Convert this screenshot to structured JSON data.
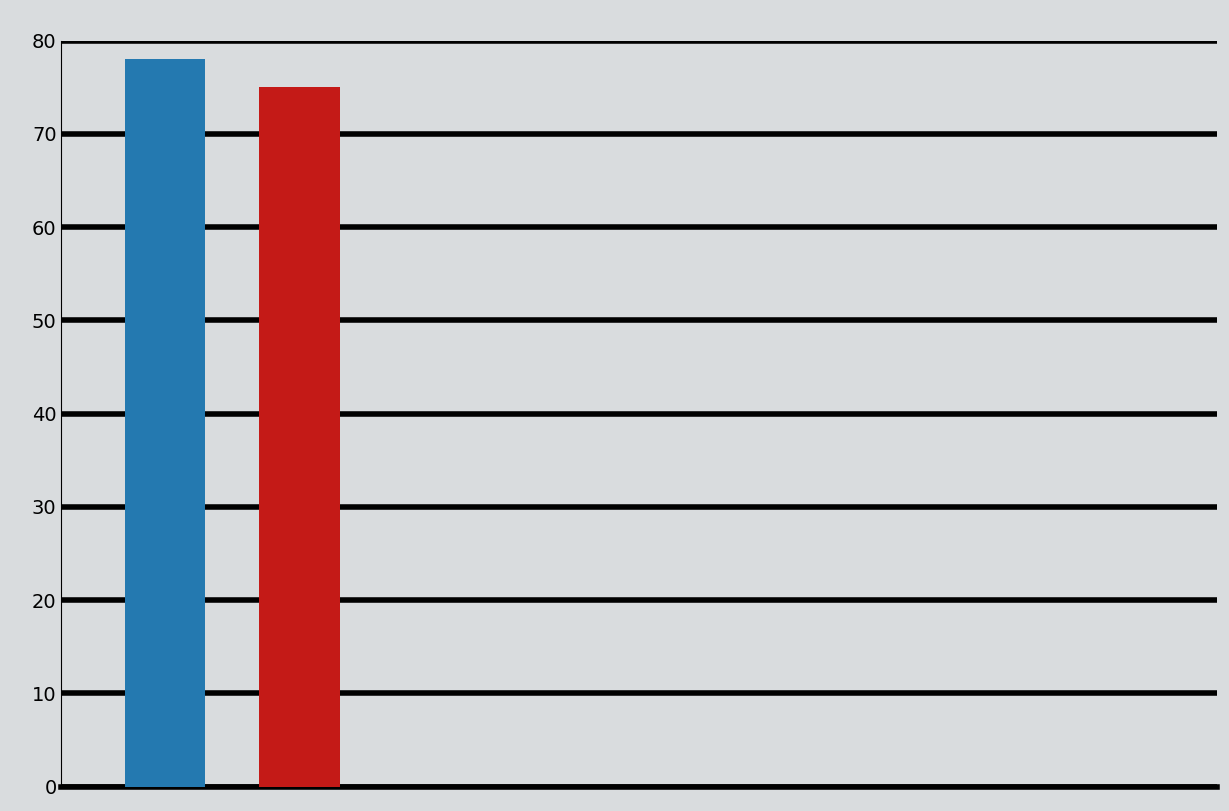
{
  "chart_data": {
    "type": "bar",
    "categories": [
      null,
      null
    ],
    "values": [
      78,
      75
    ],
    "colors": [
      "#2479b0",
      "#c41a17"
    ],
    "ylim": [
      0,
      80
    ],
    "yticks": [
      0,
      10,
      20,
      30,
      40,
      50,
      60,
      70,
      80
    ],
    "grid": true,
    "tick_labels": "y"
  }
}
